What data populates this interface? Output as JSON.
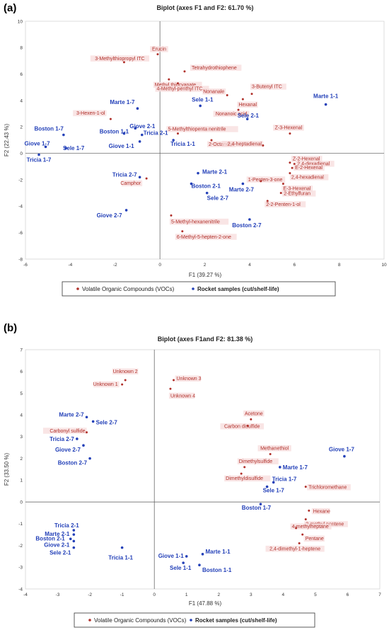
{
  "panels": [
    {
      "panel_label": "(a)",
      "legend": {
        "voc": "Volatile Organic Compounds (VOCs)",
        "samples": "Rocket samples (cut/shelf-life)"
      },
      "colors": {
        "voc": "#b0302a",
        "sample": "#2340b8",
        "label_bg": "#f7dcdc"
      },
      "chart_data": {
        "type": "scatter",
        "title": "Biplot (axes F1 and F2: 61.70 %)",
        "xlabel": "F1 (39.27 %)",
        "ylabel": "F2 (22.43 %)",
        "xlim": [
          -6,
          10
        ],
        "ylim": [
          -8,
          10
        ],
        "xticks": [
          -6,
          -4,
          -2,
          0,
          2,
          4,
          6,
          8,
          10
        ],
        "yticks": [
          -8,
          -6,
          -4,
          -2,
          0,
          2,
          4,
          6,
          8,
          10
        ],
        "series": [
          {
            "name": "Volatile Organic Compounds (VOCs)",
            "points": [
              {
                "label": "Erucin",
                "x": -0.1,
                "y": 7.5
              },
              {
                "label": "3-Methylthiopropyl ITC",
                "x": -1.6,
                "y": 6.9
              },
              {
                "label": "Tetrahydrothiophene",
                "x": 1.1,
                "y": 6.2
              },
              {
                "label": "Methyl thiocyanate",
                "x": 0.4,
                "y": 5.6
              },
              {
                "label": "4-Methyl-penthyl ITC",
                "x": 0.8,
                "y": 5.3
              },
              {
                "label": "3-Butenyl ITC",
                "x": 4.1,
                "y": 4.5
              },
              {
                "label": "Nonanale",
                "x": 3.0,
                "y": 4.4
              },
              {
                "label": "Hexanal",
                "x": 3.7,
                "y": 4.1
              },
              {
                "label": "Nonanoic acid",
                "x": 3.5,
                "y": 3.3
              },
              {
                "label": "3-Hexen-1-ol",
                "x": -2.2,
                "y": 2.6
              },
              {
                "label": "5-Methylthiopenta nenitrile",
                "x": 0.8,
                "y": 1.5
              },
              {
                "label": "Z-3-Hexenal",
                "x": 5.8,
                "y": 1.5
              },
              {
                "label": "2-Octanone",
                "x": 2.3,
                "y": 1.0
              },
              {
                "label": "2,4-heptadienal",
                "x": 4.6,
                "y": 0.6
              },
              {
                "label": "Z-2-Hexenal",
                "x": 5.8,
                "y": -0.7
              },
              {
                "label": "2,4-dexadienal",
                "x": 6.0,
                "y": -0.8
              },
              {
                "label": "E-2-Hexenal",
                "x": 5.9,
                "y": -1.1
              },
              {
                "label": "2,4-hexadienal",
                "x": 5.8,
                "y": -1.5
              },
              {
                "label": "1-Penten-3-one",
                "x": 4.5,
                "y": -2.1
              },
              {
                "label": "E-3-Hexenal",
                "x": 5.5,
                "y": -2.3
              },
              {
                "label": "Camphor",
                "x": -0.6,
                "y": -1.9
              },
              {
                "label": "2-Ethylfuran",
                "x": 5.4,
                "y": -3.0
              },
              {
                "label": "2-2-Penten-1-ol",
                "x": 4.8,
                "y": -3.6
              },
              {
                "label": "5-Methyl-hexanenitrile",
                "x": 0.5,
                "y": -4.7
              },
              {
                "label": "6-Methyl-5-hepten-2-one",
                "x": 1.0,
                "y": -5.9
              }
            ]
          },
          {
            "name": "Rocket samples (cut/shelf-life)",
            "points": [
              {
                "label": "Marte 1-7",
                "x": -1.0,
                "y": 3.4
              },
              {
                "label": "Sele 1-1",
                "x": 1.8,
                "y": 3.6
              },
              {
                "label": "Marte 1-1",
                "x": 7.4,
                "y": 3.7
              },
              {
                "label": "Sele 2-1",
                "x": 3.9,
                "y": 2.6
              },
              {
                "label": "Giove 2-1",
                "x": -1.1,
                "y": 1.9
              },
              {
                "label": "Boston 1-1",
                "x": -1.6,
                "y": 1.5
              },
              {
                "label": "Tricia 2-1",
                "x": -0.8,
                "y": 1.4
              },
              {
                "label": "Boston 1-7",
                "x": -4.3,
                "y": 1.4
              },
              {
                "label": "Giove 1-1",
                "x": -0.9,
                "y": 0.9
              },
              {
                "label": "Tricia 1-1",
                "x": 0.6,
                "y": 1.0
              },
              {
                "label": "Giove 1-7",
                "x": -5.1,
                "y": 0.5
              },
              {
                "label": "Sele 1-7",
                "x": -4.2,
                "y": 0.4
              },
              {
                "label": "Tricia 1-7",
                "x": -5.4,
                "y": -0.1
              },
              {
                "label": "Marte 2-1",
                "x": 1.7,
                "y": -1.5
              },
              {
                "label": "Tricia 2-7",
                "x": -0.9,
                "y": -1.8
              },
              {
                "label": "Boston 2-1",
                "x": 1.4,
                "y": -2.3
              },
              {
                "label": "Marte 2-7",
                "x": 3.7,
                "y": -2.3
              },
              {
                "label": "Sele 2-7",
                "x": 2.1,
                "y": -3.0
              },
              {
                "label": "Giove 2-7",
                "x": -1.5,
                "y": -4.3
              },
              {
                "label": "Boston 2-7",
                "x": 4.0,
                "y": -5.0
              }
            ]
          }
        ]
      }
    },
    {
      "panel_label": "(b)",
      "legend": {
        "voc": "Volatile Organic Compounds (VOCs)",
        "samples": "Rocket samples (cut/shelf-life)"
      },
      "colors": {
        "voc": "#b0302a",
        "sample": "#2340b8",
        "label_bg": "#f7dcdc"
      },
      "chart_data": {
        "type": "scatter",
        "title": "Biplot (axes F1and F2: 81.38 %)",
        "xlabel": "F1 (47.88 %)",
        "ylabel": "F2 (33.50 %)",
        "xlim": [
          -4,
          7
        ],
        "ylim": [
          -4,
          7
        ],
        "xticks": [
          -4,
          -3,
          -2,
          -1,
          0,
          1,
          2,
          3,
          4,
          5,
          6,
          7
        ],
        "yticks": [
          -4,
          -3,
          -2,
          -1,
          0,
          1,
          2,
          3,
          4,
          5,
          6,
          7
        ],
        "series": [
          {
            "name": "Volatile Organic Compounds (VOCs)",
            "points": [
              {
                "label": "Unknown 2",
                "x": -0.9,
                "y": 5.6
              },
              {
                "label": "Unknown 3",
                "x": 0.6,
                "y": 5.6
              },
              {
                "label": "Unknown 1",
                "x": -1.0,
                "y": 5.4
              },
              {
                "label": "Unknown 4",
                "x": 0.5,
                "y": 5.2
              },
              {
                "label": "Acetone",
                "x": 3.0,
                "y": 3.8
              },
              {
                "label": "Carbon disulfide",
                "x": 2.9,
                "y": 3.5
              },
              {
                "label": "Carbonyl sulfide",
                "x": -2.1,
                "y": 3.2
              },
              {
                "label": "Methanethiol",
                "x": 3.6,
                "y": 2.2
              },
              {
                "label": "Dimethylsulfide",
                "x": 2.8,
                "y": 1.6
              },
              {
                "label": "Dimethyldisulfide",
                "x": 2.7,
                "y": 1.3
              },
              {
                "label": "Trichloromethane",
                "x": 4.7,
                "y": 0.7
              },
              {
                "label": "Hexane",
                "x": 4.8,
                "y": -0.4
              },
              {
                "label": "2-methyl pentene",
                "x": 4.7,
                "y": -0.8
              },
              {
                "label": "4-methylheptane",
                "x": 4.4,
                "y": -1.2
              },
              {
                "label": "Pentane",
                "x": 4.6,
                "y": -1.5
              },
              {
                "label": "2,4-dimethyl-1-heptene",
                "x": 4.5,
                "y": -1.9
              }
            ]
          },
          {
            "name": "Rocket samples (cut/shelf-life)",
            "points": [
              {
                "label": "Marte 2-7",
                "x": -2.1,
                "y": 3.9
              },
              {
                "label": "Sele 2-7",
                "x": -1.9,
                "y": 3.7
              },
              {
                "label": "Tricia 2-7",
                "x": -2.4,
                "y": 2.9
              },
              {
                "label": "Giove 2-7",
                "x": -2.2,
                "y": 2.6
              },
              {
                "label": "Boston 2-7",
                "x": -2.0,
                "y": 2.0
              },
              {
                "label": "Giove 1-7",
                "x": 5.9,
                "y": 2.1
              },
              {
                "label": "Marte 1-7",
                "x": 3.9,
                "y": 1.6
              },
              {
                "label": "Tricia 1-7",
                "x": 3.7,
                "y": 0.9
              },
              {
                "label": "Sele 1-7",
                "x": 3.5,
                "y": 0.7
              },
              {
                "label": "Boston 1-7",
                "x": 3.3,
                "y": -0.1
              },
              {
                "label": "Tricia 2-1",
                "x": -2.5,
                "y": -1.3
              },
              {
                "label": "Marte 2-1",
                "x": -2.5,
                "y": -1.5
              },
              {
                "label": "Boston 2-1",
                "x": -2.6,
                "y": -1.7
              },
              {
                "label": "Giove 2-1",
                "x": -2.5,
                "y": -1.8
              },
              {
                "label": "Sele 2-1",
                "x": -2.5,
                "y": -2.1
              },
              {
                "label": "Tricia 1-1",
                "x": -1.0,
                "y": -2.1
              },
              {
                "label": "Giove 1-1",
                "x": 1.0,
                "y": -2.5
              },
              {
                "label": "Marte 1-1",
                "x": 1.5,
                "y": -2.4
              },
              {
                "label": "Sele 1-1",
                "x": 0.9,
                "y": -2.8
              },
              {
                "label": "Boston 1-1",
                "x": 1.4,
                "y": -2.9
              }
            ]
          }
        ]
      }
    }
  ]
}
